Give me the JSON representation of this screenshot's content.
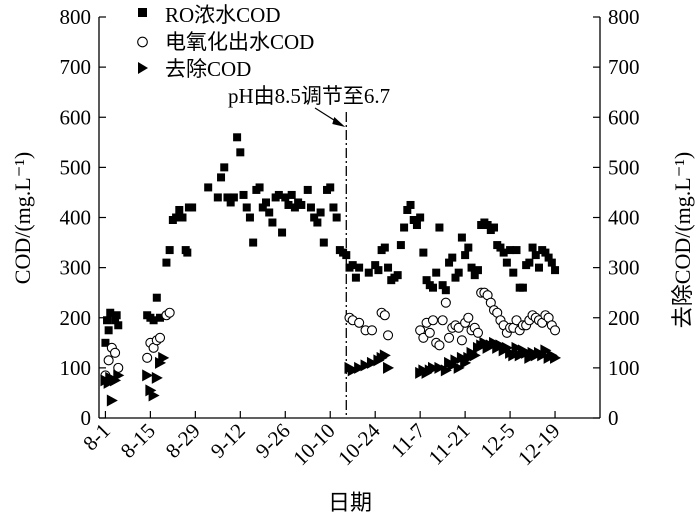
{
  "chart_data": {
    "type": "scatter",
    "xlabel": "日期",
    "ylabel_left": "COD/(mg.L⁻¹)",
    "ylabel_right": "去除COD/(mg.L⁻¹)",
    "x_tick_labels": [
      "8-1",
      "8-15",
      "8-29",
      "9-12",
      "9-26",
      "10-10",
      "10-24",
      "11-7",
      "11-21",
      "12-5",
      "12-19"
    ],
    "x_ticks_day": [
      0,
      14,
      28,
      42,
      56,
      70,
      84,
      98,
      112,
      126,
      140
    ],
    "xlim_day": [
      -2,
      154
    ],
    "ylim": [
      0,
      800
    ],
    "y_ticks": [
      0,
      100,
      200,
      300,
      400,
      500,
      600,
      700,
      800
    ],
    "annotation": {
      "text": "pH由8.5调节至6.7",
      "x_day": 75
    },
    "series": [
      {
        "name": "RO浓水COD",
        "marker": "square",
        "points": [
          [
            0,
            150
          ],
          [
            0.5,
            195
          ],
          [
            1,
            175
          ],
          [
            1.5,
            210
          ],
          [
            3,
            195
          ],
          [
            3.5,
            205
          ],
          [
            4,
            185
          ],
          [
            13,
            205
          ],
          [
            14,
            200
          ],
          [
            15,
            195
          ],
          [
            16,
            240
          ],
          [
            17,
            200
          ],
          [
            19,
            310
          ],
          [
            20,
            335
          ],
          [
            21,
            395
          ],
          [
            22,
            400
          ],
          [
            23,
            415
          ],
          [
            24,
            400
          ],
          [
            25,
            335
          ],
          [
            25.5,
            330
          ],
          [
            26,
            420
          ],
          [
            27,
            420
          ],
          [
            32,
            460
          ],
          [
            35,
            440
          ],
          [
            36,
            480
          ],
          [
            37,
            500
          ],
          [
            38,
            440
          ],
          [
            39,
            430
          ],
          [
            40,
            440
          ],
          [
            41,
            560
          ],
          [
            42,
            530
          ],
          [
            43,
            445
          ],
          [
            44,
            420
          ],
          [
            45,
            400
          ],
          [
            46,
            350
          ],
          [
            47,
            455
          ],
          [
            48,
            460
          ],
          [
            49,
            420
          ],
          [
            50,
            430
          ],
          [
            51,
            410
          ],
          [
            52,
            390
          ],
          [
            53,
            440
          ],
          [
            54,
            445
          ],
          [
            55,
            370
          ],
          [
            56,
            440
          ],
          [
            57,
            425
          ],
          [
            58,
            445
          ],
          [
            59,
            420
          ],
          [
            60,
            430
          ],
          [
            61,
            425
          ],
          [
            63,
            455
          ],
          [
            64,
            420
          ],
          [
            65,
            400
          ],
          [
            66,
            390
          ],
          [
            67,
            410
          ],
          [
            68,
            350
          ],
          [
            69,
            455
          ],
          [
            70,
            460
          ],
          [
            71,
            420
          ],
          [
            72,
            400
          ],
          [
            73,
            335
          ],
          [
            74,
            330
          ],
          [
            75,
            325
          ],
          [
            76,
            300
          ],
          [
            77,
            305
          ],
          [
            78,
            280
          ],
          [
            79,
            300
          ],
          [
            82,
            290
          ],
          [
            84,
            305
          ],
          [
            85,
            295
          ],
          [
            86,
            335
          ],
          [
            87,
            340
          ],
          [
            88,
            300
          ],
          [
            89,
            275
          ],
          [
            90,
            280
          ],
          [
            91,
            285
          ],
          [
            92,
            345
          ],
          [
            93,
            380
          ],
          [
            94,
            415
          ],
          [
            95,
            425
          ],
          [
            96,
            395
          ],
          [
            97,
            385
          ],
          [
            98,
            400
          ],
          [
            99,
            330
          ],
          [
            100,
            275
          ],
          [
            101,
            265
          ],
          [
            102,
            260
          ],
          [
            103,
            290
          ],
          [
            104,
            380
          ],
          [
            105,
            265
          ],
          [
            106,
            255
          ],
          [
            107,
            310
          ],
          [
            108,
            320
          ],
          [
            109,
            280
          ],
          [
            110,
            290
          ],
          [
            111,
            360
          ],
          [
            112,
            325
          ],
          [
            113,
            340
          ],
          [
            114,
            300
          ],
          [
            115,
            285
          ],
          [
            116,
            295
          ],
          [
            117,
            385
          ],
          [
            118,
            390
          ],
          [
            119,
            385
          ],
          [
            120,
            375
          ],
          [
            121,
            380
          ],
          [
            122,
            345
          ],
          [
            123,
            340
          ],
          [
            124,
            330
          ],
          [
            125,
            310
          ],
          [
            126,
            335
          ],
          [
            127,
            290
          ],
          [
            128,
            335
          ],
          [
            129,
            260
          ],
          [
            130,
            260
          ],
          [
            131,
            305
          ],
          [
            132,
            310
          ],
          [
            133,
            340
          ],
          [
            134,
            325
          ],
          [
            135,
            300
          ],
          [
            136,
            335
          ],
          [
            137,
            330
          ],
          [
            138,
            320
          ],
          [
            139,
            310
          ],
          [
            140,
            295
          ]
        ]
      },
      {
        "name": "电氧化出水COD",
        "marker": "circle",
        "points": [
          [
            0,
            85
          ],
          [
            1,
            115
          ],
          [
            2,
            140
          ],
          [
            3,
            130
          ],
          [
            4,
            100
          ],
          [
            13,
            120
          ],
          [
            14,
            150
          ],
          [
            15,
            140
          ],
          [
            16,
            155
          ],
          [
            17,
            160
          ],
          [
            19,
            205
          ],
          [
            20,
            210
          ],
          [
            76,
            200
          ],
          [
            77,
            195
          ],
          [
            79,
            190
          ],
          [
            81,
            175
          ],
          [
            83,
            175
          ],
          [
            86,
            210
          ],
          [
            87,
            205
          ],
          [
            88,
            165
          ],
          [
            98,
            175
          ],
          [
            99,
            160
          ],
          [
            100,
            190
          ],
          [
            101,
            170
          ],
          [
            102,
            195
          ],
          [
            103,
            150
          ],
          [
            104,
            145
          ],
          [
            105,
            195
          ],
          [
            106,
            230
          ],
          [
            107,
            160
          ],
          [
            108,
            180
          ],
          [
            109,
            185
          ],
          [
            110,
            180
          ],
          [
            111,
            155
          ],
          [
            112,
            190
          ],
          [
            113,
            200
          ],
          [
            114,
            175
          ],
          [
            115,
            180
          ],
          [
            116,
            170
          ],
          [
            117,
            250
          ],
          [
            118,
            250
          ],
          [
            119,
            245
          ],
          [
            120,
            230
          ],
          [
            121,
            215
          ],
          [
            122,
            210
          ],
          [
            123,
            195
          ],
          [
            124,
            185
          ],
          [
            125,
            170
          ],
          [
            126,
            180
          ],
          [
            127,
            180
          ],
          [
            128,
            195
          ],
          [
            129,
            175
          ],
          [
            130,
            185
          ],
          [
            131,
            185
          ],
          [
            132,
            195
          ],
          [
            133,
            205
          ],
          [
            134,
            200
          ],
          [
            135,
            195
          ],
          [
            136,
            190
          ],
          [
            137,
            205
          ],
          [
            138,
            200
          ],
          [
            139,
            185
          ],
          [
            140,
            175
          ]
        ]
      },
      {
        "name": "去除COD",
        "marker": "triangle",
        "points": [
          [
            0,
            75
          ],
          [
            1,
            70
          ],
          [
            1.5,
            80
          ],
          [
            2,
            35
          ],
          [
            3,
            75
          ],
          [
            4,
            85
          ],
          [
            13,
            85
          ],
          [
            14,
            55
          ],
          [
            15,
            45
          ],
          [
            16,
            80
          ],
          [
            17,
            110
          ],
          [
            18,
            120
          ],
          [
            76,
            100
          ],
          [
            77,
            95
          ],
          [
            79,
            100
          ],
          [
            81,
            105
          ],
          [
            83,
            110
          ],
          [
            85,
            115
          ],
          [
            86,
            120
          ],
          [
            87,
            125
          ],
          [
            88,
            100
          ],
          [
            98,
            90
          ],
          [
            99,
            95
          ],
          [
            100,
            90
          ],
          [
            101,
            95
          ],
          [
            102,
            100
          ],
          [
            104,
            100
          ],
          [
            106,
            95
          ],
          [
            107,
            110
          ],
          [
            108,
            105
          ],
          [
            109,
            115
          ],
          [
            110,
            100
          ],
          [
            111,
            120
          ],
          [
            112,
            110
          ],
          [
            113,
            120
          ],
          [
            114,
            130
          ],
          [
            115,
            125
          ],
          [
            116,
            140
          ],
          [
            117,
            145
          ],
          [
            118,
            150
          ],
          [
            119,
            140
          ],
          [
            120,
            145
          ],
          [
            121,
            150
          ],
          [
            122,
            140
          ],
          [
            123,
            145
          ],
          [
            124,
            135
          ],
          [
            125,
            140
          ],
          [
            126,
            130
          ],
          [
            127,
            125
          ],
          [
            128,
            140
          ],
          [
            129,
            125
          ],
          [
            130,
            135
          ],
          [
            131,
            130
          ],
          [
            132,
            120
          ],
          [
            133,
            130
          ],
          [
            134,
            125
          ],
          [
            135,
            130
          ],
          [
            136,
            125
          ],
          [
            137,
            135
          ],
          [
            138,
            120
          ],
          [
            139,
            125
          ],
          [
            140,
            120
          ]
        ]
      }
    ]
  }
}
